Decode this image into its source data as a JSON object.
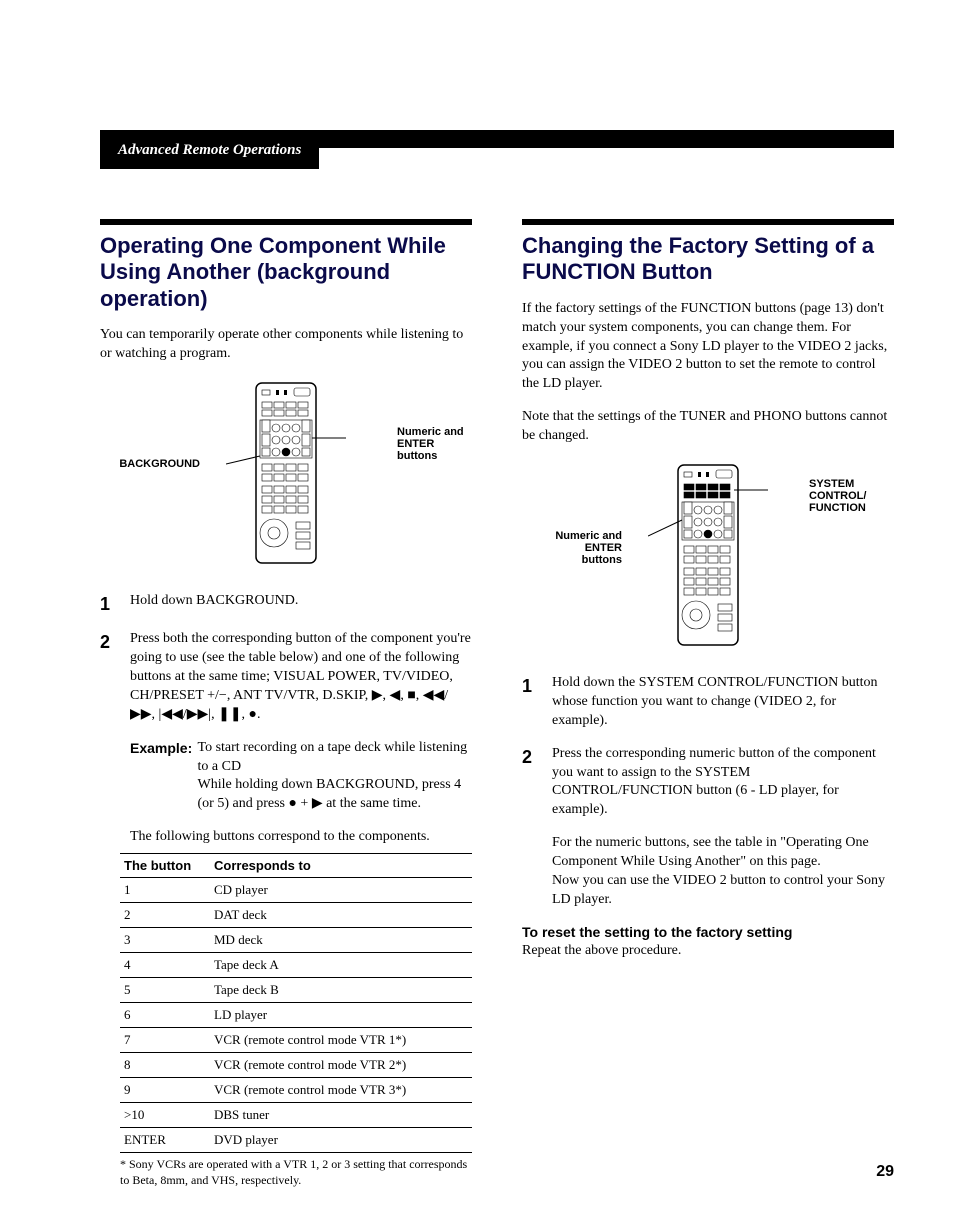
{
  "header": {
    "title": "Advanced Remote Operations"
  },
  "left": {
    "title": "Operating One Component While Using Another (background operation)",
    "intro": "You can temporarily operate other components while listening to or watching a program.",
    "diagram": {
      "label_left": "BACKGROUND",
      "label_right": "Numeric and ENTER buttons"
    },
    "step1": "Hold down BACKGROUND.",
    "step2": "Press both the corresponding button of the component you're going to use (see the table below) and one of the following buttons at the same time; VISUAL POWER, TV/VIDEO, CH/PRESET +/−, ANT TV/VTR, D.SKIP, ▶, ◀, ■, ◀◀/▶▶, |◀◀/▶▶|, ❚❚, ●.",
    "example_label": "Example:",
    "example_text": "To start recording on a tape deck while listening to a CD\nWhile holding down BACKGROUND, press 4 (or 5) and press ● + ▶ at the same time.",
    "table_intro": "The following buttons correspond to the components.",
    "table": {
      "col1": "The button",
      "col2": "Corresponds to",
      "rows": [
        [
          "1",
          "CD player"
        ],
        [
          "2",
          "DAT deck"
        ],
        [
          "3",
          "MD deck"
        ],
        [
          "4",
          "Tape deck A"
        ],
        [
          "5",
          "Tape deck B"
        ],
        [
          "6",
          "LD player"
        ],
        [
          "7",
          "VCR (remote control mode VTR 1*)"
        ],
        [
          "8",
          "VCR (remote control mode VTR 2*)"
        ],
        [
          "9",
          "VCR (remote control mode VTR 3*)"
        ],
        [
          ">10",
          "DBS tuner"
        ],
        [
          "ENTER",
          "DVD player"
        ]
      ]
    },
    "footnote": "* Sony VCRs are operated with a VTR 1, 2 or 3 setting that corresponds to Beta, 8mm, and VHS, respectively."
  },
  "right": {
    "title": "Changing the Factory Setting of a FUNCTION Button",
    "p1": "If the factory settings of the FUNCTION buttons (page 13) don't match your system components, you can change them. For example, if you connect a Sony LD player to the VIDEO 2 jacks, you can assign the VIDEO 2 button to set the remote to control the LD player.",
    "p2": "Note that the settings of the TUNER and PHONO buttons cannot be changed.",
    "diagram": {
      "label_left": "Numeric and ENTER buttons",
      "label_right": "SYSTEM CONTROL/ FUNCTION"
    },
    "step1": "Hold down the SYSTEM CONTROL/FUNCTION button whose function you want to change (VIDEO 2, for example).",
    "step2": "Press the corresponding numeric button of the component you want to assign to the SYSTEM CONTROL/FUNCTION button (6 - LD player, for example).",
    "note": "For the numeric buttons, see the table in \"Operating One Component While Using Another\" on this page.\nNow you can use the VIDEO 2 button to control your Sony LD player.",
    "reset_head": "To reset the setting to the factory setting",
    "reset_body": "Repeat the above procedure."
  },
  "pagenum": "29"
}
